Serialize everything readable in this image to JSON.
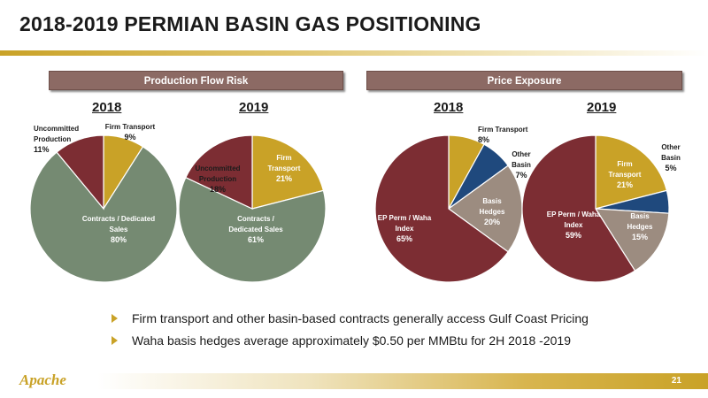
{
  "title": "2018-2019 PERMIAN BASIN GAS POSITIONING",
  "headers": {
    "left": "Production Flow Risk",
    "right": "Price Exposure"
  },
  "years": {
    "y2018": "2018",
    "y2019": "2019"
  },
  "colors": {
    "gold": "#c9a227",
    "green": "#758a72",
    "maroon": "#7c2d33",
    "navy": "#1f497d",
    "taupe": "#9c8c80"
  },
  "chart_data": [
    {
      "type": "pie",
      "title": "2018",
      "slices": [
        {
          "label": "Firm Transport",
          "value": 9,
          "color": "#c9a227"
        },
        {
          "label": "Contracts / Dedicated Sales",
          "value": 80,
          "color": "#758a72"
        },
        {
          "label": "Uncommitted Production",
          "value": 11,
          "color": "#7c2d33"
        }
      ]
    },
    {
      "type": "pie",
      "title": "2019",
      "slices": [
        {
          "label": "Firm Transport",
          "value": 21,
          "color": "#c9a227"
        },
        {
          "label": "Contracts / Dedicated Sales",
          "value": 61,
          "color": "#758a72"
        },
        {
          "label": "Uncommitted Production",
          "value": 18,
          "color": "#7c2d33"
        }
      ]
    },
    {
      "type": "pie",
      "title": "2018",
      "slices": [
        {
          "label": "Firm Transport",
          "value": 8,
          "color": "#c9a227"
        },
        {
          "label": "Other Basin",
          "value": 7,
          "color": "#1f497d"
        },
        {
          "label": "Basis Hedges",
          "value": 20,
          "color": "#9c8c80"
        },
        {
          "label": "EP Perm / Waha Index",
          "value": 65,
          "color": "#7c2d33"
        }
      ]
    },
    {
      "type": "pie",
      "title": "2019",
      "slices": [
        {
          "label": "Firm Transport",
          "value": 21,
          "color": "#c9a227"
        },
        {
          "label": "Other Basin",
          "value": 5,
          "color": "#1f497d"
        },
        {
          "label": "Basis Hedges",
          "value": 15,
          "color": "#9c8c80"
        },
        {
          "label": "EP Perm / Waha Index",
          "value": 59,
          "color": "#7c2d33"
        }
      ]
    }
  ],
  "bullets": [
    "Firm transport and other basin-based contracts generally access Gulf Coast Pricing",
    "Waha basis hedges average approximately $0.50 per MMBtu for 2H 2018 -2019"
  ],
  "footer": {
    "page_number": "21",
    "logo_text": "Apache"
  }
}
